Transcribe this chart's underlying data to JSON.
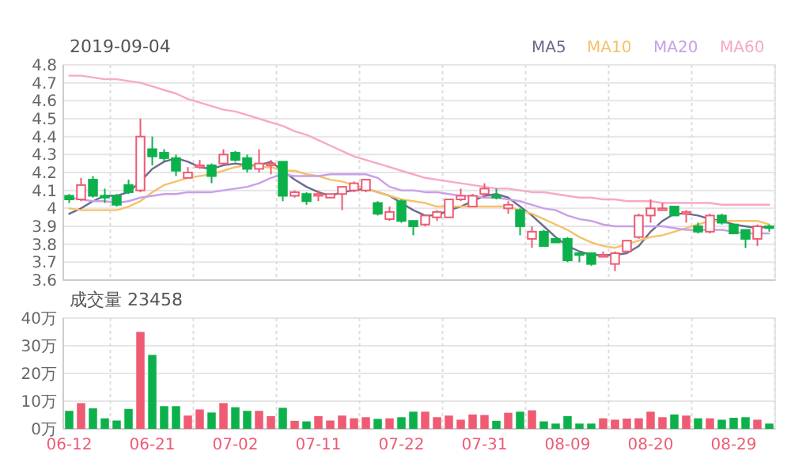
{
  "chart_data": [
    {
      "type": "candlestick",
      "title": "2019-09-04",
      "legend": "top right",
      "grid": true,
      "tick_labels": "y",
      "ylim": [
        3.6,
        4.8
      ],
      "yticks": [
        3.6,
        3.7,
        3.8,
        3.9,
        4,
        4.1,
        4.2,
        4.3,
        4.4,
        4.5,
        4.6,
        4.7,
        4.8
      ],
      "categories": [
        null,
        null,
        null,
        null,
        null,
        null,
        null,
        null,
        null,
        null,
        null,
        null,
        null,
        null,
        null,
        null,
        null,
        null,
        null,
        null,
        null,
        null,
        null,
        null,
        null,
        null,
        null,
        null,
        null,
        null,
        null,
        null,
        null,
        null,
        null,
        null,
        null,
        null,
        null,
        null,
        null,
        null,
        null,
        null,
        null,
        null,
        null,
        null,
        null,
        null,
        null,
        null,
        null,
        null,
        null,
        null,
        null,
        null,
        null,
        null
      ],
      "ohlc": [
        [
          4.07,
          4.08,
          4.03,
          4.05
        ],
        [
          4.05,
          4.17,
          4.04,
          4.13
        ],
        [
          4.16,
          4.18,
          4.06,
          4.07
        ],
        [
          4.07,
          4.11,
          4.03,
          4.06
        ],
        [
          4.07,
          4.08,
          4.01,
          4.02
        ],
        [
          4.13,
          4.16,
          4.08,
          4.09
        ],
        [
          4.1,
          4.5,
          4.09,
          4.4
        ],
        [
          4.33,
          4.4,
          4.24,
          4.29
        ],
        [
          4.31,
          4.33,
          4.26,
          4.28
        ],
        [
          4.28,
          4.3,
          4.18,
          4.21
        ],
        [
          4.17,
          4.23,
          4.17,
          4.2
        ],
        [
          4.23,
          4.27,
          4.22,
          4.24
        ],
        [
          4.24,
          4.25,
          4.14,
          4.18
        ],
        [
          4.25,
          4.33,
          4.24,
          4.3
        ],
        [
          4.31,
          4.32,
          4.26,
          4.27
        ],
        [
          4.28,
          4.3,
          4.2,
          4.22
        ],
        [
          4.22,
          4.33,
          4.2,
          4.25
        ],
        [
          4.24,
          4.27,
          4.19,
          4.25
        ],
        [
          4.26,
          4.26,
          4.04,
          4.07
        ],
        [
          4.07,
          4.1,
          4.06,
          4.09
        ],
        [
          4.08,
          4.09,
          4.02,
          4.04
        ],
        [
          4.07,
          4.1,
          4.04,
          4.08
        ],
        [
          4.06,
          4.08,
          4.06,
          4.08
        ],
        [
          4.08,
          4.12,
          3.99,
          4.12
        ],
        [
          4.1,
          4.15,
          4.09,
          4.14
        ],
        [
          4.1,
          4.16,
          4.09,
          4.16
        ],
        [
          4.03,
          4.04,
          3.96,
          3.97
        ],
        [
          3.94,
          4.01,
          3.93,
          3.98
        ],
        [
          4.04,
          4.05,
          3.92,
          3.93
        ],
        [
          3.93,
          3.93,
          3.85,
          3.9
        ],
        [
          3.91,
          3.96,
          3.9,
          3.96
        ],
        [
          3.95,
          3.99,
          3.93,
          3.98
        ],
        [
          3.95,
          4.05,
          3.95,
          4.05
        ],
        [
          4.05,
          4.11,
          4.04,
          4.07
        ],
        [
          4.01,
          4.08,
          4.01,
          4.07
        ],
        [
          4.08,
          4.14,
          4.06,
          4.11
        ],
        [
          4.07,
          4.11,
          4.05,
          4.06
        ],
        [
          4,
          4.04,
          3.97,
          4.02
        ],
        [
          3.99,
          4,
          3.85,
          3.9
        ],
        [
          3.83,
          3.9,
          3.78,
          3.87
        ],
        [
          3.87,
          3.88,
          3.79,
          3.79
        ],
        [
          3.83,
          3.83,
          3.81,
          3.81
        ],
        [
          3.83,
          3.84,
          3.7,
          3.71
        ],
        [
          3.75,
          3.75,
          3.7,
          3.74
        ],
        [
          3.75,
          3.75,
          3.68,
          3.69
        ],
        [
          3.73,
          3.76,
          3.73,
          3.74
        ],
        [
          3.69,
          3.76,
          3.65,
          3.75
        ],
        [
          3.76,
          3.82,
          3.75,
          3.82
        ],
        [
          3.84,
          3.97,
          3.83,
          3.96
        ],
        [
          3.96,
          4.05,
          3.92,
          4
        ],
        [
          3.99,
          4.03,
          3.99,
          4
        ],
        [
          4.01,
          4.01,
          3.96,
          3.96
        ],
        [
          3.97,
          3.99,
          3.92,
          3.98
        ],
        [
          3.9,
          3.92,
          3.86,
          3.87
        ],
        [
          3.87,
          3.97,
          3.86,
          3.96
        ],
        [
          3.96,
          3.97,
          3.91,
          3.92
        ],
        [
          3.91,
          3.91,
          3.86,
          3.86
        ],
        [
          3.88,
          3.88,
          3.78,
          3.83
        ],
        [
          3.83,
          3.91,
          3.79,
          3.9
        ],
        [
          3.9,
          3.91,
          3.87,
          3.89
        ]
      ],
      "series": [
        {
          "name": "MA5",
          "type": "line",
          "color": "#6b6b8e",
          "values": [
            3.97,
            4,
            4.04,
            4.07,
            4.07,
            4.09,
            4.15,
            4.22,
            4.26,
            4.28,
            4.26,
            4.23,
            4.22,
            4.24,
            4.25,
            4.24,
            4.24,
            4.26,
            4.21,
            4.16,
            4.12,
            4.09,
            4.07,
            4.09,
            4.1,
            4.11,
            4.09,
            4.07,
            4.03,
            3.99,
            3.96,
            3.96,
            3.99,
            4.01,
            4.04,
            4.07,
            4.08,
            4.06,
            4.01,
            3.96,
            3.9,
            3.84,
            3.79,
            3.76,
            3.74,
            3.74,
            3.74,
            3.75,
            3.79,
            3.87,
            3.93,
            3.97,
            3.97,
            3.96,
            3.94,
            3.93,
            3.91,
            3.9,
            3.89,
            3.9
          ]
        },
        {
          "name": "MA10",
          "type": "line",
          "color": "#f5c26b",
          "values": [
            4,
            3.99,
            3.99,
            3.99,
            3.99,
            4.01,
            4.04,
            4.09,
            4.13,
            4.15,
            4.17,
            4.18,
            4.19,
            4.21,
            4.23,
            4.24,
            4.23,
            4.23,
            4.21,
            4.21,
            4.19,
            4.18,
            4.16,
            4.15,
            4.13,
            4.11,
            4.09,
            4.07,
            4.05,
            4.04,
            4.03,
            4.01,
            4.01,
            4.01,
            4.01,
            4.01,
            4.01,
            4.01,
            3.99,
            3.97,
            3.94,
            3.91,
            3.88,
            3.84,
            3.81,
            3.79,
            3.78,
            3.8,
            3.82,
            3.84,
            3.85,
            3.87,
            3.89,
            3.91,
            3.93,
            3.93,
            3.93,
            3.93,
            3.93,
            3.91
          ]
        },
        {
          "name": "MA20",
          "type": "line",
          "color": "#c9a0e8",
          "values": [
            4.06,
            4.05,
            4.04,
            4.04,
            4.03,
            4.04,
            4.06,
            4.07,
            4.08,
            4.08,
            4.09,
            4.09,
            4.09,
            4.1,
            4.11,
            4.12,
            4.14,
            4.17,
            4.19,
            4.18,
            4.18,
            4.18,
            4.19,
            4.19,
            4.19,
            4.19,
            4.17,
            4.12,
            4.1,
            4.1,
            4.09,
            4.09,
            4.08,
            4.07,
            4.07,
            4.06,
            4.06,
            4.05,
            4.04,
            4.02,
            4,
            3.99,
            3.96,
            3.94,
            3.93,
            3.91,
            3.9,
            3.9,
            3.9,
            3.9,
            3.9,
            3.89,
            3.88,
            3.88,
            3.88,
            3.88,
            3.87,
            3.86,
            3.86,
            3.86
          ]
        },
        {
          "name": "MA60",
          "type": "line",
          "color": "#f7a8c8",
          "values": [
            4.74,
            4.74,
            4.73,
            4.72,
            4.72,
            4.71,
            4.7,
            4.68,
            4.66,
            4.64,
            4.61,
            4.59,
            4.57,
            4.55,
            4.54,
            4.52,
            4.5,
            4.48,
            4.46,
            4.43,
            4.41,
            4.38,
            4.35,
            4.32,
            4.29,
            4.27,
            4.25,
            4.23,
            4.21,
            4.19,
            4.17,
            4.16,
            4.15,
            4.14,
            4.13,
            4.12,
            4.11,
            4.11,
            4.1,
            4.09,
            4.09,
            4.08,
            4.07,
            4.06,
            4.06,
            4.05,
            4.05,
            4.04,
            4.04,
            4.04,
            4.03,
            4.03,
            4.03,
            4.03,
            4.03,
            4.02,
            4.02,
            4.02,
            4.02,
            4.02
          ]
        }
      ]
    },
    {
      "type": "bar",
      "title": "成交量 23458",
      "grid": true,
      "ylim": [
        0,
        40
      ],
      "yticks": [
        {
          "value": 0,
          "label": "0万"
        },
        {
          "value": 10,
          "label": "10万"
        },
        {
          "value": 20,
          "label": "20万"
        },
        {
          "value": 30,
          "label": "30万"
        },
        {
          "value": 40,
          "label": "40万"
        }
      ],
      "categories": [
        "06-12",
        null,
        null,
        null,
        null,
        null,
        null,
        "06-21",
        null,
        null,
        null,
        null,
        null,
        null,
        "07-02",
        null,
        null,
        null,
        null,
        null,
        null,
        "07-11",
        null,
        null,
        null,
        null,
        null,
        null,
        "07-22",
        null,
        null,
        null,
        null,
        null,
        null,
        "07-31",
        null,
        null,
        null,
        null,
        null,
        null,
        "08-09",
        null,
        null,
        null,
        null,
        null,
        null,
        "08-20",
        null,
        null,
        null,
        null,
        null,
        null,
        "08-29",
        null,
        null,
        null
      ],
      "values": [
        6.5,
        9.3,
        7.4,
        3.8,
        3,
        7.2,
        35,
        26.7,
        8.2,
        8.2,
        4.8,
        7,
        5.9,
        9.3,
        7.8,
        6.5,
        6.5,
        4.6,
        7.6,
        2.9,
        2.7,
        4.6,
        3,
        4.8,
        3.8,
        4.2,
        3.6,
        3.8,
        4.2,
        6.2,
        6.2,
        4.2,
        4.8,
        3.3,
        5.2,
        5,
        2.9,
        5.8,
        6.2,
        6.7,
        2.7,
        1.9,
        4.6,
        1.9,
        1.9,
        3.8,
        3.3,
        3.7,
        3.8,
        6.2,
        4.2,
        5.2,
        4.8,
        3.8,
        3.8,
        3.3,
        4,
        4.2,
        3.3,
        1.9
      ],
      "colors": [
        "#0db14b",
        "#ef5b73",
        "#0db14b",
        "#0db14b",
        "#0db14b",
        "#0db14b",
        "#ef5b73",
        "#0db14b",
        "#0db14b",
        "#0db14b",
        "#ef5b73",
        "#ef5b73",
        "#0db14b",
        "#ef5b73",
        "#0db14b",
        "#0db14b",
        "#ef5b73",
        "#ef5b73",
        "#0db14b",
        "#ef5b73",
        "#0db14b",
        "#ef5b73",
        "#ef5b73",
        "#ef5b73",
        "#ef5b73",
        "#ef5b73",
        "#0db14b",
        "#ef5b73",
        "#0db14b",
        "#0db14b",
        "#ef5b73",
        "#ef5b73",
        "#ef5b73",
        "#ef5b73",
        "#ef5b73",
        "#ef5b73",
        "#0db14b",
        "#ef5b73",
        "#0db14b",
        "#ef5b73",
        "#0db14b",
        "#0db14b",
        "#0db14b",
        "#0db14b",
        "#0db14b",
        "#ef5b73",
        "#ef5b73",
        "#ef5b73",
        "#ef5b73",
        "#ef5b73",
        "#ef5b73",
        "#0db14b",
        "#ef5b73",
        "#0db14b",
        "#ef5b73",
        "#0db14b",
        "#0db14b",
        "#0db14b",
        "#ef5b73",
        "#0db14b"
      ]
    }
  ]
}
